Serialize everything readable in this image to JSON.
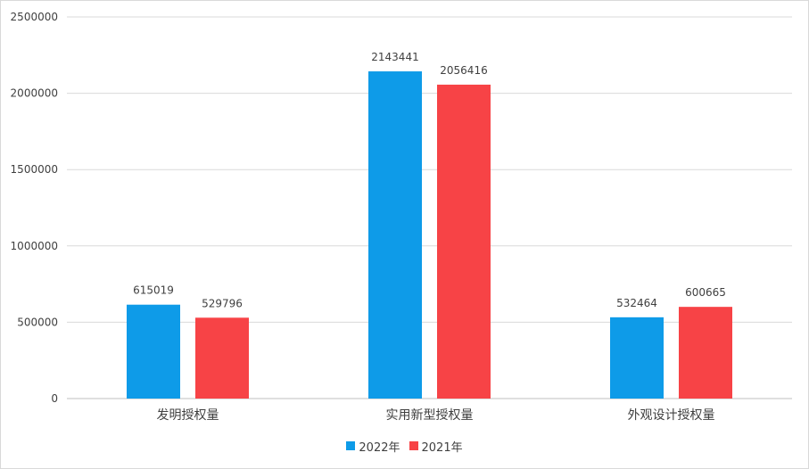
{
  "chart_data": {
    "type": "bar",
    "categories": [
      "发明授权量",
      "实用新型授权量",
      "外观设计授权量"
    ],
    "series": [
      {
        "name": "2022年",
        "color": "#0e9be8",
        "values": [
          615019,
          2143441,
          532464
        ]
      },
      {
        "name": "2021年",
        "color": "#f74346",
        "values": [
          529796,
          2056416,
          600665
        ]
      }
    ],
    "ylim": [
      0,
      2500000
    ],
    "yticks": [
      0,
      500000,
      1000000,
      1500000,
      2000000,
      2500000
    ],
    "ytick_labels": [
      "0",
      "500000",
      "1000000",
      "1500000",
      "2000000",
      "2500000"
    ],
    "data_labels": [
      [
        "615019",
        "2143441",
        "532464"
      ],
      [
        "529796",
        "2056416",
        "600665"
      ]
    ],
    "grid": true,
    "legend_position": "bottom"
  }
}
